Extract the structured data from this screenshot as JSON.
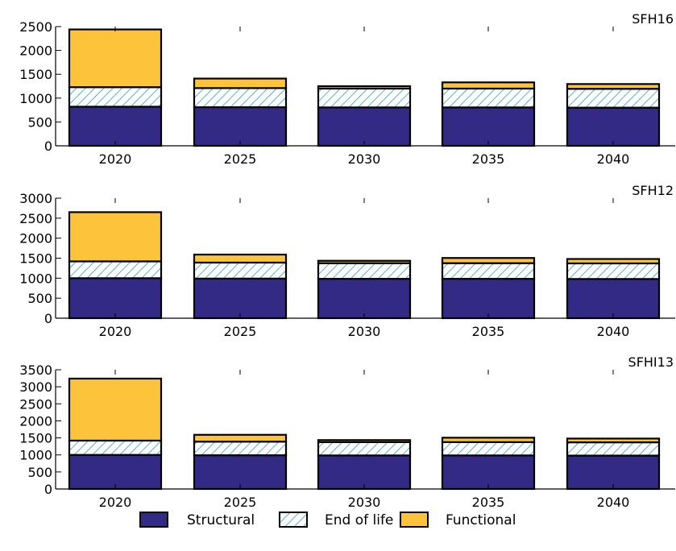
{
  "chart_data": [
    {
      "type": "bar",
      "stacked": true,
      "title": "SFH16",
      "categories": [
        "2020",
        "2025",
        "2030",
        "2035",
        "2040"
      ],
      "ylim": [
        0,
        2500
      ],
      "yticks": [
        0,
        500,
        1000,
        1500,
        2000,
        2500
      ],
      "series": [
        {
          "name": "Structural",
          "values": [
            820,
            810,
            805,
            805,
            800
          ]
        },
        {
          "name": "End of life",
          "values": [
            410,
            400,
            395,
            395,
            395
          ]
        },
        {
          "name": "Functional",
          "values": [
            1210,
            200,
            50,
            130,
            100
          ]
        }
      ]
    },
    {
      "type": "bar",
      "stacked": true,
      "title": "SFH12",
      "categories": [
        "2020",
        "2025",
        "2030",
        "2035",
        "2040"
      ],
      "ylim": [
        0,
        3000
      ],
      "yticks": [
        0,
        500,
        1000,
        1500,
        2000,
        2500,
        3000
      ],
      "series": [
        {
          "name": "Structural",
          "values": [
            1000,
            990,
            985,
            985,
            980
          ]
        },
        {
          "name": "End of life",
          "values": [
            420,
            400,
            390,
            390,
            390
          ]
        },
        {
          "name": "Functional",
          "values": [
            1230,
            200,
            60,
            130,
            110
          ]
        }
      ]
    },
    {
      "type": "bar",
      "stacked": true,
      "title": "SFHI13",
      "categories": [
        "2020",
        "2025",
        "2030",
        "2035",
        "2040"
      ],
      "ylim": [
        0,
        3500
      ],
      "yticks": [
        0,
        500,
        1000,
        1500,
        2000,
        2500,
        3000,
        3500
      ],
      "series": [
        {
          "name": "Structural",
          "values": [
            1000,
            990,
            985,
            985,
            980
          ]
        },
        {
          "name": "End of life",
          "values": [
            420,
            400,
            390,
            390,
            390
          ]
        },
        {
          "name": "Functional",
          "values": [
            1820,
            200,
            60,
            130,
            110
          ]
        }
      ]
    }
  ],
  "legend": {
    "placement": "bottom",
    "items": [
      {
        "label": "Structural",
        "color": "#322a84",
        "pattern": "solid"
      },
      {
        "label": "End of life",
        "color": "#2a9fc0",
        "pattern": "hatch"
      },
      {
        "label": "Functional",
        "color": "#fcc33b",
        "pattern": "solid"
      }
    ]
  },
  "colors": {
    "structural": "#322a84",
    "end_of_life_hatch": "#2a9fc0",
    "functional": "#fcc33b"
  }
}
